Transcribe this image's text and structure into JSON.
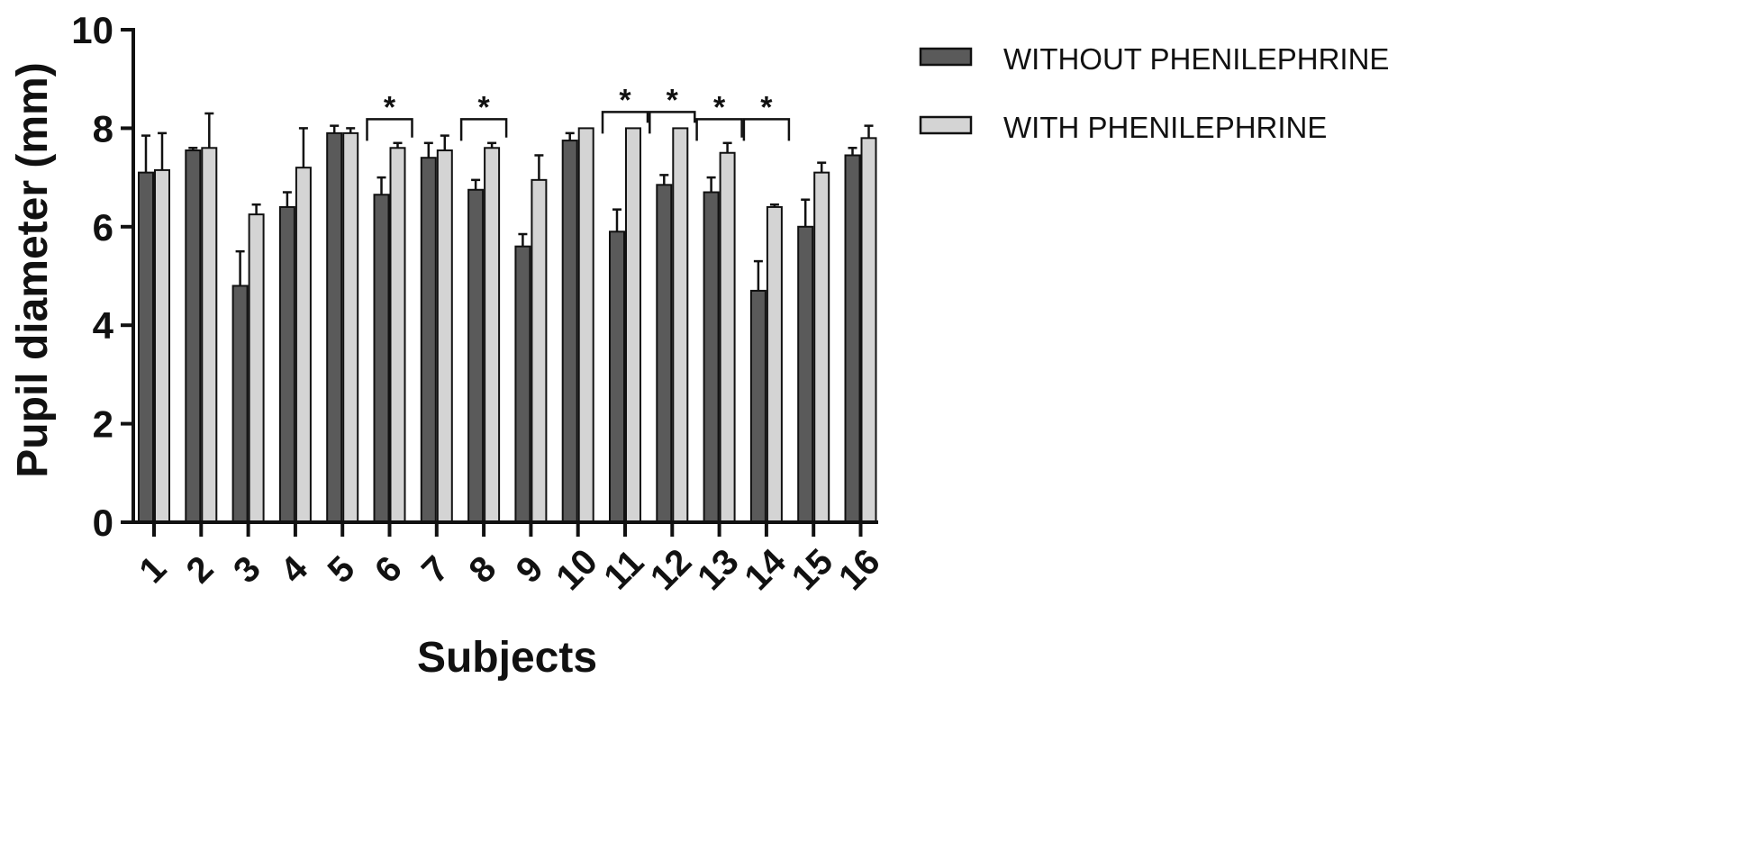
{
  "chart_data": {
    "type": "bar",
    "title": "",
    "xlabel": "Subjects",
    "ylabel": "Pupil diameter (mm)",
    "ylim": [
      0,
      10
    ],
    "yticks": [
      0,
      2,
      4,
      6,
      8,
      10
    ],
    "categories": [
      "1",
      "2",
      "3",
      "4",
      "5",
      "6",
      "7",
      "8",
      "9",
      "10",
      "11",
      "12",
      "13",
      "14",
      "15",
      "16"
    ],
    "series": [
      {
        "name": "WITHOUT PHENILEPHRINE",
        "color": "#5a5a5a",
        "values": [
          7.1,
          7.55,
          4.8,
          6.4,
          7.9,
          6.65,
          7.4,
          6.75,
          5.6,
          7.75,
          5.9,
          6.85,
          6.7,
          4.7,
          6.0,
          7.45
        ],
        "errors": [
          0.75,
          0.05,
          0.7,
          0.3,
          0.15,
          0.35,
          0.3,
          0.2,
          0.25,
          0.15,
          0.45,
          0.2,
          0.3,
          0.6,
          0.55,
          0.15
        ]
      },
      {
        "name": "WITH PHENILEPHRINE",
        "color": "#d4d4d4",
        "values": [
          7.15,
          7.6,
          6.25,
          7.2,
          7.9,
          7.6,
          7.55,
          7.6,
          6.95,
          8.0,
          8.0,
          8.0,
          7.5,
          6.4,
          7.1,
          7.8
        ],
        "errors": [
          0.75,
          0.7,
          0.2,
          0.8,
          0.1,
          0.1,
          0.3,
          0.1,
          0.5,
          0.0,
          0.0,
          0.0,
          0.2,
          0.05,
          0.2,
          0.25
        ]
      }
    ],
    "significance": [
      {
        "category": "6",
        "label": "*"
      },
      {
        "category": "8",
        "label": "*"
      },
      {
        "category": "11",
        "label": "*"
      },
      {
        "category": "12",
        "label": "*"
      },
      {
        "category": "13",
        "label": "*"
      },
      {
        "category": "14",
        "label": "*"
      }
    ],
    "legend_position": "top-right",
    "grid": false
  }
}
